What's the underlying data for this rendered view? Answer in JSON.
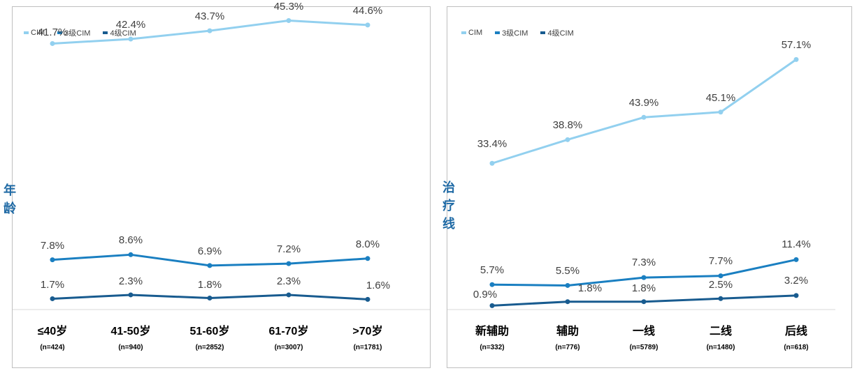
{
  "chart_data": [
    {
      "type": "line",
      "ylabel": "年龄",
      "categories": [
        "≤40岁",
        "41-50岁",
        "51-60岁",
        "61-70岁",
        ">70岁"
      ],
      "sample_sizes": [
        "(n=424)",
        "(n=940)",
        "(n=2852)",
        "(n=3007)",
        "(n=1781)"
      ],
      "ylim": [
        0,
        60
      ],
      "legend_position": "top-left",
      "series": [
        {
          "name": "CIM",
          "color": "#92d0ef",
          "values": [
            41.7,
            42.4,
            43.7,
            45.3,
            44.6
          ],
          "labels": [
            "41.7%",
            "42.4%",
            "43.7%",
            "45.3%",
            "44.6%"
          ]
        },
        {
          "name": "3级CIM",
          "color": "#1a7fc1",
          "values": [
            7.8,
            8.6,
            6.9,
            7.2,
            8.0
          ],
          "labels": [
            "7.8%",
            "8.6%",
            "6.9%",
            "7.2%",
            "8.0%"
          ]
        },
        {
          "name": "4级CIM",
          "color": "#185b8f",
          "values": [
            1.7,
            2.3,
            1.8,
            2.3,
            1.6
          ],
          "labels": [
            "1.7%",
            "2.3%",
            "1.8%",
            "2.3%",
            "1.6%"
          ]
        }
      ]
    },
    {
      "type": "line",
      "ylabel": "治疗线",
      "categories": [
        "新辅助",
        "辅助",
        "一线",
        "二线",
        "后线"
      ],
      "sample_sizes": [
        "(n=332)",
        "(n=776)",
        "(n=5789)",
        "(n=1480)",
        "(n=618)"
      ],
      "ylim": [
        0,
        60
      ],
      "legend_position": "top-left",
      "series": [
        {
          "name": "CIM",
          "color": "#92d0ef",
          "values": [
            33.4,
            38.8,
            43.9,
            45.1,
            57.1
          ],
          "labels": [
            "33.4%",
            "38.8%",
            "43.9%",
            "45.1%",
            "57.1%"
          ]
        },
        {
          "name": "3级CIM",
          "color": "#1a7fc1",
          "values": [
            5.7,
            5.5,
            7.3,
            7.7,
            11.4
          ],
          "labels": [
            "5.7%",
            "5.5%",
            "7.3%",
            "7.7%",
            "11.4%"
          ]
        },
        {
          "name": "4级CIM",
          "color": "#185b8f",
          "values": [
            0.9,
            1.8,
            1.8,
            2.5,
            3.2
          ],
          "labels": [
            "0.9%",
            "1.8%",
            "1.8%",
            "2.5%",
            "3.2%"
          ]
        }
      ]
    }
  ]
}
